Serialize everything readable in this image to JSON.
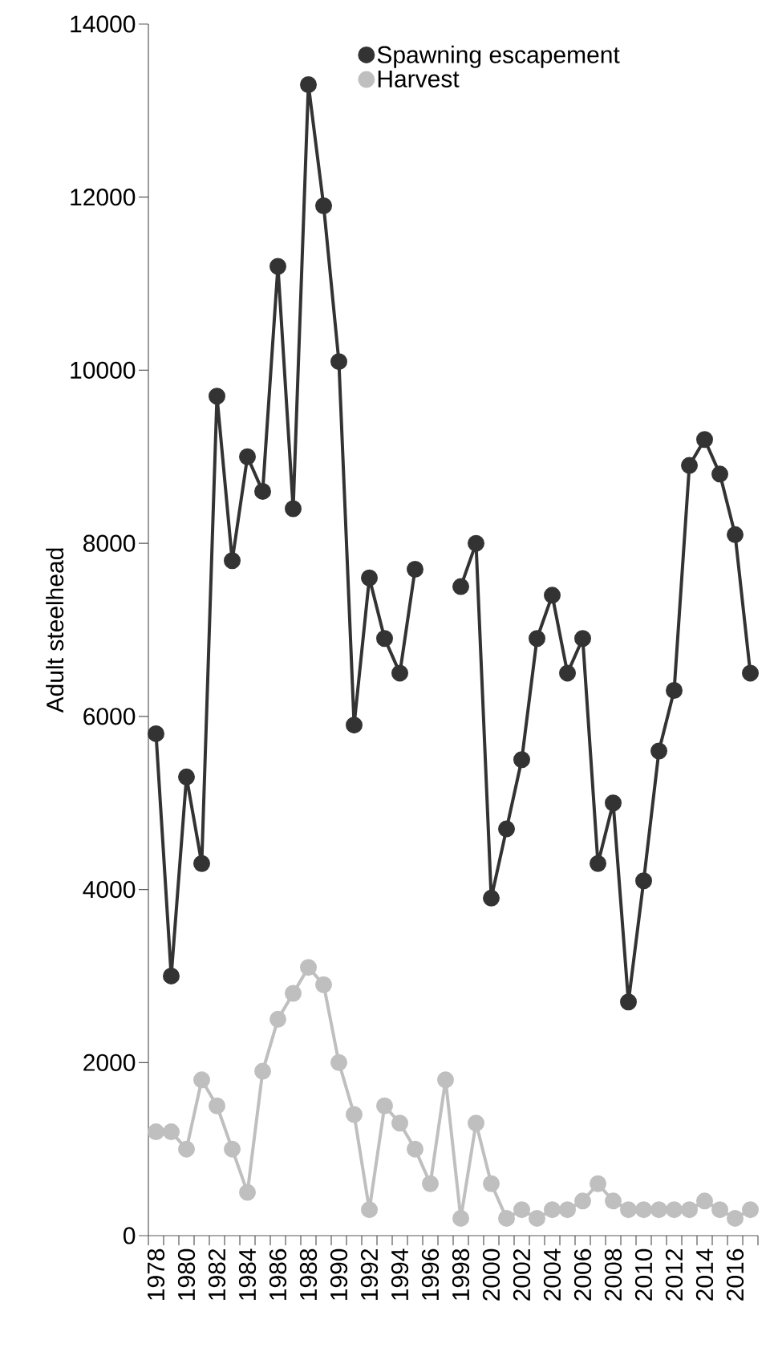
{
  "chart_data": {
    "type": "line",
    "ylabel": "Adult steelhead",
    "categories": [
      "1978",
      null,
      "1980",
      null,
      "1982",
      null,
      "1984",
      null,
      "1986",
      null,
      "1988",
      null,
      "1990",
      null,
      "1992",
      null,
      "1994",
      null,
      "1996",
      null,
      "1998",
      null,
      "2000",
      null,
      "2002",
      null,
      "2004",
      null,
      "2006",
      null,
      "2008",
      null,
      "2010",
      null,
      "2012",
      null,
      "2014",
      null,
      "2016",
      null
    ],
    "series": [
      {
        "name": "Spawning escapement",
        "color": "#333333",
        "values": [
          5800,
          3000,
          5300,
          4300,
          9700,
          7800,
          9000,
          8600,
          11200,
          8400,
          13300,
          11900,
          10100,
          5900,
          7600,
          6900,
          6500,
          7700,
          null,
          null,
          7500,
          8000,
          3900,
          4700,
          5500,
          6900,
          7400,
          6500,
          6900,
          4300,
          5000,
          2700,
          4100,
          5600,
          6300,
          8900,
          9200,
          8800,
          8100,
          6500
        ]
      },
      {
        "name": "Harvest",
        "color": "#bfbfbf",
        "values": [
          1200,
          1200,
          1000,
          1800,
          1500,
          1000,
          500,
          1900,
          2500,
          2800,
          3100,
          2900,
          2000,
          1400,
          300,
          1500,
          1300,
          1000,
          600,
          1800,
          200,
          1300,
          600,
          200,
          300,
          200,
          300,
          300,
          400,
          600,
          400,
          300,
          300,
          300,
          300,
          300,
          400,
          300,
          200,
          300
        ]
      }
    ],
    "ylim": [
      0,
      14000
    ],
    "yticks": [
      0,
      2000,
      4000,
      6000,
      8000,
      10000,
      12000,
      14000
    ],
    "legend": "top",
    "marker": "circle"
  }
}
